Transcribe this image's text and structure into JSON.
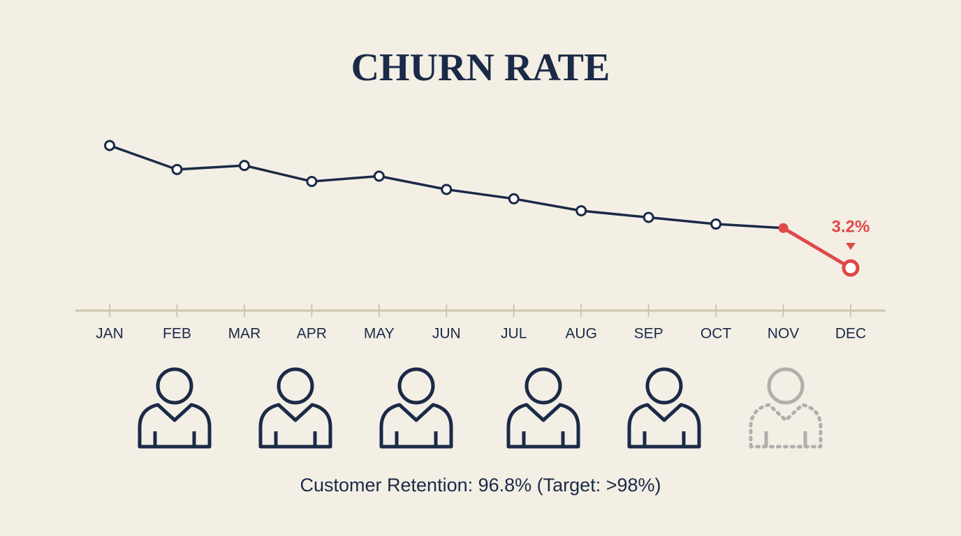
{
  "chart_data": {
    "type": "line",
    "title": "CHURN RATE",
    "categories": [
      "JAN",
      "FEB",
      "MAR",
      "APR",
      "MAY",
      "JUN",
      "JUL",
      "AUG",
      "SEP",
      "OCT",
      "NOV",
      "DEC"
    ],
    "series": [
      {
        "color": "#1b2a47",
        "highlight_color": "#e04848",
        "values": [
          12.4,
          10.6,
          10.9,
          9.7,
          10.1,
          9.1,
          8.4,
          7.5,
          7.0,
          6.5,
          6.2,
          3.2
        ],
        "value_labels": [
          null,
          null,
          null,
          null,
          null,
          null,
          null,
          null,
          null,
          null,
          null,
          "3.2%"
        ]
      }
    ],
    "ylim": [
      0,
      14
    ],
    "footnote": "Customer Retention: 96.8% (Target: >98%)"
  }
}
